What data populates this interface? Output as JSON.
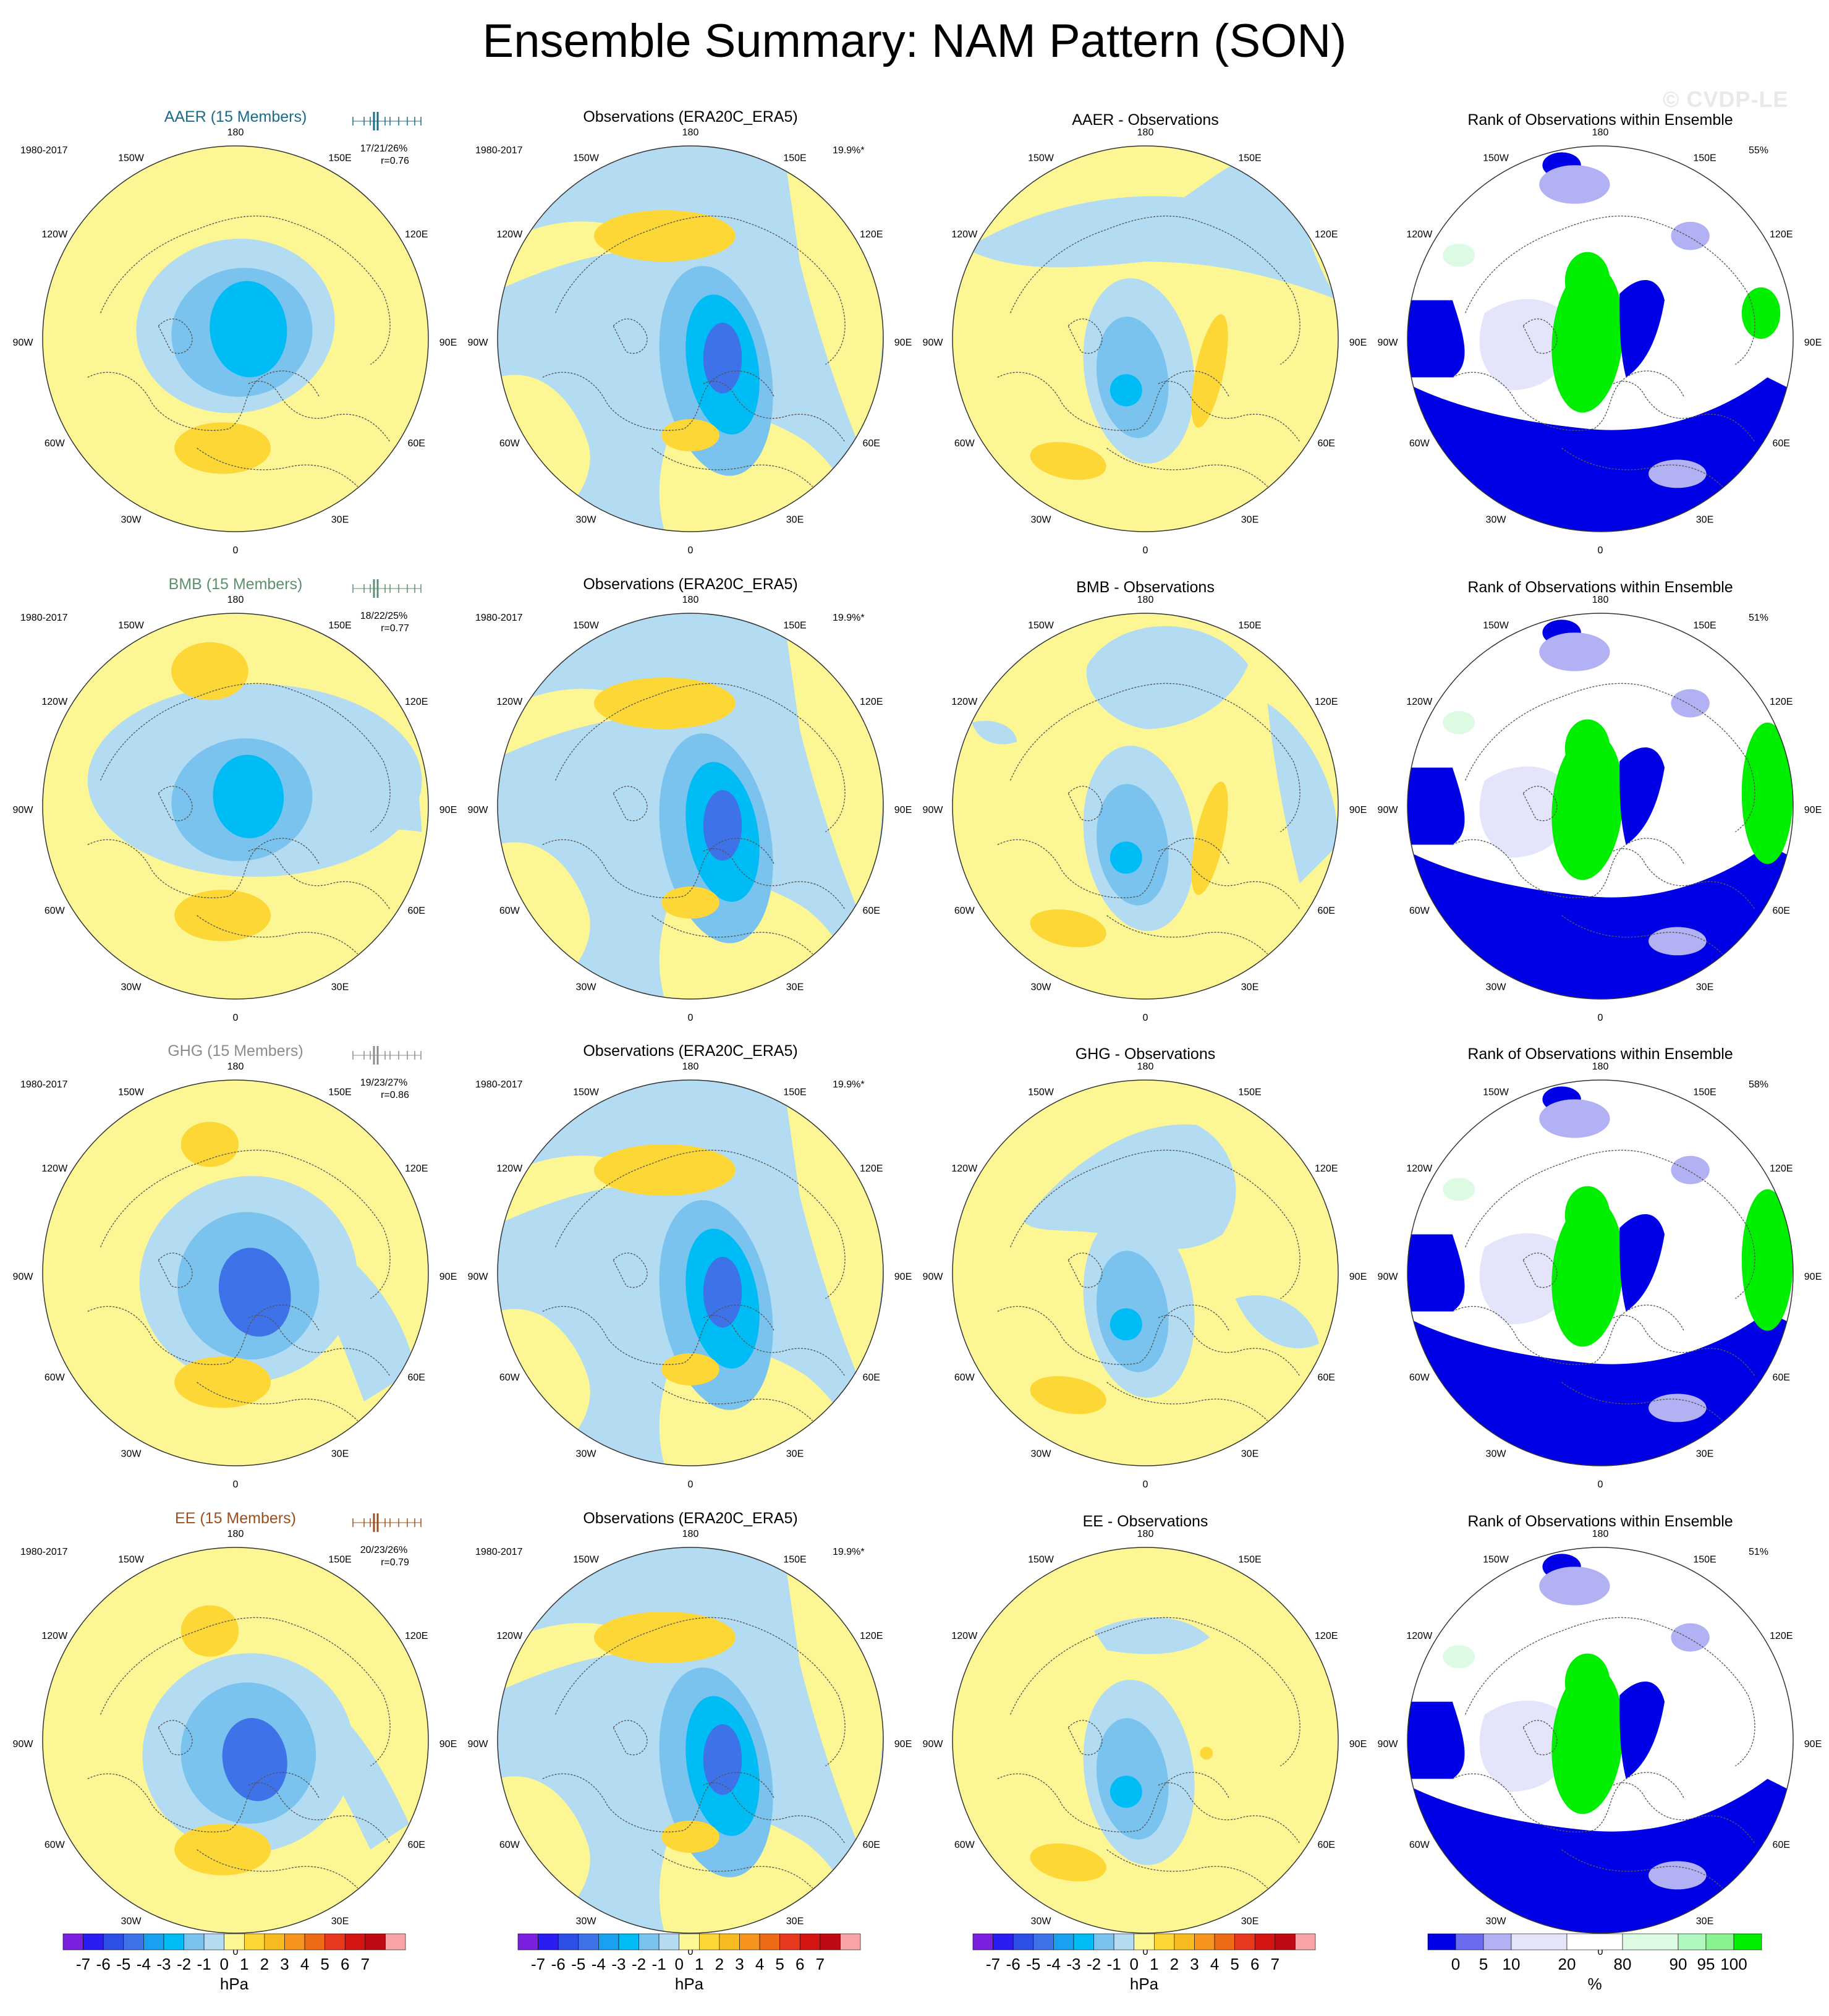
{
  "title": "Ensemble Summary: NAM Pattern (SON)",
  "watermark": "© CVDP-LE",
  "colors": {
    "diff": [
      "#7b1fe0",
      "#2a1cf2",
      "#2e4fe6",
      "#3d72e8",
      "#1aa0f0",
      "#00bcf5",
      "#7ac3ee",
      "#b3dcf3",
      "#fdf695",
      "#fdd735",
      "#f8bb1f",
      "#f7941d",
      "#ef6a16",
      "#e8391e",
      "#d51414",
      "#bf0a14",
      "#f8a3a8"
    ],
    "rank": [
      "#0000e6",
      "#6b6bef",
      "#b1b1f3",
      "#e4e4fb",
      "#ffffff",
      "#dcfbe2",
      "#b0f8bf",
      "#88f390",
      "#00ee00"
    ],
    "ensemble": {
      "AAER": "#1b6b8a",
      "BMB": "#5e8f6e",
      "GHG": "#8c8c8c",
      "EE": "#9a4f1e"
    }
  },
  "rows": [
    {
      "model": "AAER",
      "ensemble_title": "AAER (15 Members)",
      "period": "1980-2017",
      "stats1": "17/21/26%",
      "stats2": "r=0.76",
      "obs_title": "Observations (ERA20C_ERA5)",
      "obs_period": "1980-2017",
      "obs_pct": "19.9%*",
      "diff_title": "AAER - Observations",
      "rank_title": "Rank of Observations within Ensemble",
      "rank_pct": "55%"
    },
    {
      "model": "BMB",
      "ensemble_title": "BMB (15 Members)",
      "period": "1980-2017",
      "stats1": "18/22/25%",
      "stats2": "r=0.77",
      "obs_title": "Observations (ERA20C_ERA5)",
      "obs_period": "1980-2017",
      "obs_pct": "19.9%*",
      "diff_title": "BMB - Observations",
      "rank_title": "Rank of Observations within Ensemble",
      "rank_pct": "51%"
    },
    {
      "model": "GHG",
      "ensemble_title": "GHG (15 Members)",
      "period": "1980-2017",
      "stats1": "19/23/27%",
      "stats2": "r=0.86",
      "obs_title": "Observations (ERA20C_ERA5)",
      "obs_period": "1980-2017",
      "obs_pct": "19.9%*",
      "diff_title": "GHG - Observations",
      "rank_title": "Rank of Observations within Ensemble",
      "rank_pct": "58%"
    },
    {
      "model": "EE",
      "ensemble_title": "EE (15 Members)",
      "period": "1980-2017",
      "stats1": "20/23/26%",
      "stats2": "r=0.79",
      "obs_title": "Observations (ERA20C_ERA5)",
      "obs_period": "1980-2017",
      "obs_pct": "19.9%*",
      "diff_title": "EE - Observations",
      "rank_title": "Rank of Observations within Ensemble",
      "rank_pct": "51%"
    }
  ],
  "longitude_labels": [
    "180",
    "150E",
    "120E",
    "90E",
    "60E",
    "30E",
    "0",
    "30W",
    "60W",
    "90W",
    "120W",
    "150W"
  ],
  "colorbar_hpa": {
    "ticks": [
      "-7",
      "-6",
      "-5",
      "-4",
      "-3",
      "-2",
      "-1",
      "0",
      "1",
      "2",
      "3",
      "4",
      "5",
      "6",
      "7"
    ],
    "unit": "hPa"
  },
  "colorbar_rank": {
    "ticks": [
      "0",
      "5",
      "10",
      "20",
      "80",
      "90",
      "95",
      "100"
    ],
    "unit": "%"
  }
}
